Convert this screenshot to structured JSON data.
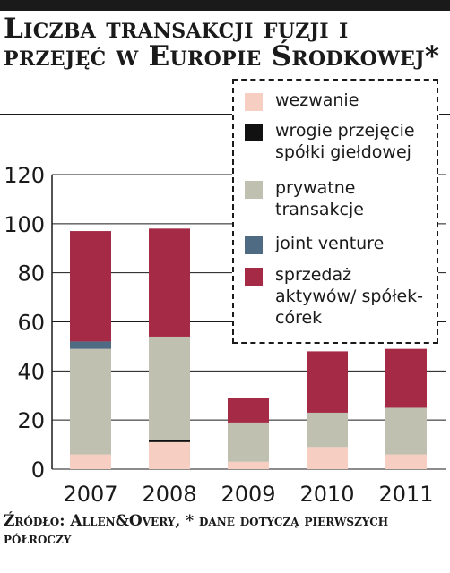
{
  "title": "Liczba transakcji fuzji i przejęć w Europie Środkowej*",
  "source": "Źródło: Allen&Overy, * dane dotyczą pierwszych półroczy",
  "chart_data": {
    "type": "bar",
    "stacked": true,
    "categories": [
      "2007",
      "2008",
      "2009",
      "2010",
      "2011"
    ],
    "series": [
      {
        "name": "wezwanie",
        "color": "#f7cfc2",
        "values": [
          6,
          11,
          3,
          9,
          6
        ]
      },
      {
        "name": "wrogie przejęcie spółki giełdowej",
        "color": "#111111",
        "values": [
          0,
          1,
          0,
          0,
          0
        ]
      },
      {
        "name": "prywatne transakcje",
        "color": "#c0c0b0",
        "values": [
          43,
          42,
          16,
          14,
          19
        ]
      },
      {
        "name": "joint venture",
        "color": "#4f6b84",
        "values": [
          3,
          0,
          0,
          0,
          0
        ]
      },
      {
        "name": "sprzedaż aktywów/ spółek-córek",
        "color": "#a52a45",
        "values": [
          45,
          44,
          10,
          25,
          24
        ]
      }
    ],
    "yticks": [
      0,
      20,
      40,
      60,
      80,
      100,
      120
    ],
    "ylim": [
      0,
      120
    ],
    "grid": true,
    "legend_position": "top-right"
  }
}
